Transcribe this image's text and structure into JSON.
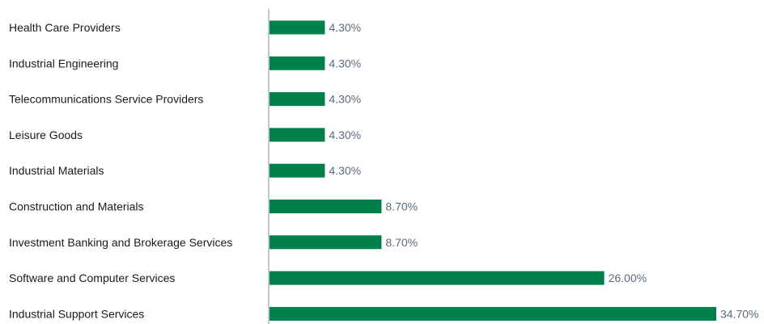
{
  "chart_data": {
    "type": "bar",
    "orientation": "horizontal",
    "categories": [
      "Health Care Providers",
      "Industrial Engineering",
      "Telecommunications Service Providers",
      "Leisure Goods",
      "Industrial Materials",
      "Construction and Materials",
      "Investment Banking and Brokerage Services",
      "Software and Computer Services",
      "Industrial Support Services"
    ],
    "values": [
      4.3,
      4.3,
      4.3,
      4.3,
      4.3,
      8.7,
      8.7,
      26.0,
      34.7
    ],
    "value_labels": [
      "4.30%",
      "4.30%",
      "4.30%",
      "4.30%",
      "4.30%",
      "8.70%",
      "8.70%",
      "26.00%",
      "34.70%"
    ],
    "xlim": [
      0,
      34.7
    ],
    "grid": false,
    "legend": "none",
    "bar_color": "#00804a",
    "axis_color": "#8c8c8c",
    "value_label_color": "#5a6a7e",
    "category_label_color": "#1a1a1a"
  }
}
